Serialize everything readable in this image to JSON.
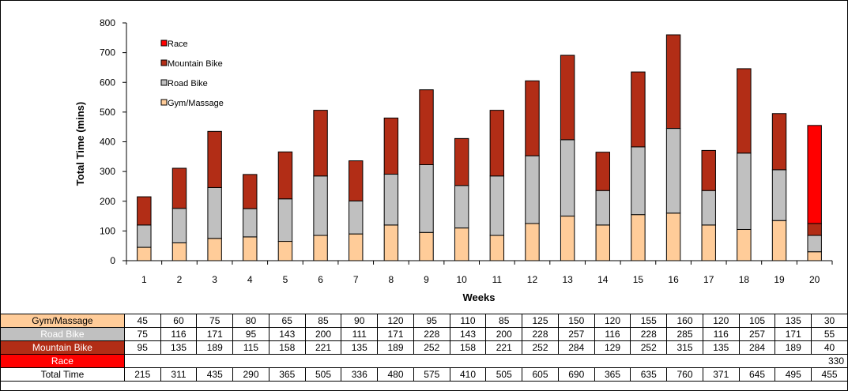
{
  "chart_data": {
    "type": "bar",
    "stacked": true,
    "categories": [
      "1",
      "2",
      "3",
      "4",
      "5",
      "6",
      "7",
      "8",
      "9",
      "10",
      "11",
      "12",
      "13",
      "14",
      "15",
      "16",
      "17",
      "18",
      "19",
      "20"
    ],
    "series": [
      {
        "name": "Gym/Massage",
        "color": "#FFCC99",
        "values": [
          45,
          60,
          75,
          80,
          65,
          85,
          90,
          120,
          95,
          110,
          85,
          125,
          150,
          120,
          155,
          160,
          120,
          105,
          135,
          30
        ]
      },
      {
        "name": "Road Bike",
        "color": "#C0C0C0",
        "values": [
          75,
          116,
          171,
          95,
          143,
          200,
          111,
          171,
          228,
          143,
          200,
          228,
          257,
          116,
          228,
          285,
          116,
          257,
          171,
          55
        ]
      },
      {
        "name": "Mountain Bike",
        "color": "#B22D16",
        "values": [
          95,
          135,
          189,
          115,
          158,
          221,
          135,
          189,
          252,
          158,
          221,
          252,
          284,
          129,
          252,
          315,
          135,
          284,
          189,
          40
        ]
      },
      {
        "name": "Race",
        "color": "#FF0000",
        "values": [
          0,
          0,
          0,
          0,
          0,
          0,
          0,
          0,
          0,
          0,
          0,
          0,
          0,
          0,
          0,
          0,
          0,
          0,
          0,
          330
        ]
      }
    ],
    "totals_label": "Total Time",
    "totals": [
      215,
      311,
      435,
      290,
      365,
      505,
      336,
      480,
      575,
      410,
      505,
      605,
      690,
      365,
      635,
      760,
      371,
      645,
      495,
      455
    ],
    "xlabel": "Weeks",
    "ylabel": "Total Time (mins)",
    "ylim": [
      0,
      800
    ],
    "yticks": [
      0,
      100,
      200,
      300,
      400,
      500,
      600,
      700,
      800
    ],
    "grid": false,
    "legend": "top-left",
    "legend_order": [
      "Race",
      "Mountain Bike",
      "Road Bike",
      "Gym/Massage"
    ]
  }
}
